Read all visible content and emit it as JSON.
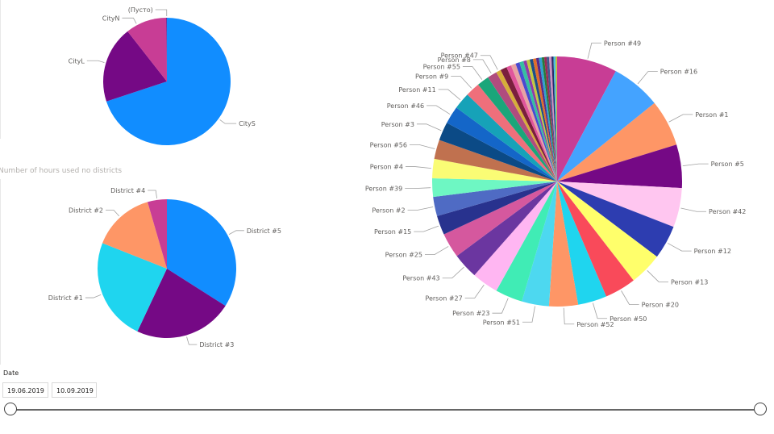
{
  "chart_data": [
    {
      "type": "pie",
      "title": "",
      "categories": [
        "CityS",
        "CityL",
        "CityN",
        "(Пусто)"
      ],
      "values": [
        70,
        19.5,
        10.5,
        0.1
      ],
      "colors": [
        "#118dff",
        "#750985",
        "#c83d95",
        "#12239e"
      ]
    },
    {
      "type": "pie",
      "title": "Number of hours used no districts",
      "categories": [
        "District #5",
        "District #3",
        "District #1",
        "District #2",
        "District #4"
      ],
      "values": [
        34,
        23,
        24,
        14.5,
        4.5
      ],
      "colors": [
        "#118dff",
        "#750985",
        "#1fd5ef",
        "#fe9666",
        "#c83d95"
      ]
    },
    {
      "type": "pie",
      "title": "",
      "categories": [
        "Person #49",
        "Person #16",
        "Person #1",
        "Person #5",
        "Person #42",
        "Person #12",
        "Person #13",
        "Person #20",
        "Person #50",
        "Person #52",
        "Person #51",
        "Person #23",
        "Person #27",
        "Person #43",
        "Person #25",
        "Person #15",
        "Person #2",
        "Person #39",
        "Person #4",
        "Person #56",
        "Person #3",
        "Person #46",
        "Person #11",
        "Person #9",
        "Person #55",
        "Person #8",
        "Person #47"
      ],
      "values": [
        7.5,
        6.2,
        5.8,
        5.4,
        4.9,
        4.2,
        4.1,
        3.9,
        3.6,
        3.6,
        3.4,
        3.4,
        3.3,
        3.2,
        3.1,
        2.4,
        2.4,
        2.3,
        2.4,
        2.4,
        2.3,
        2.2,
        2.1,
        1.8,
        1.5,
        1.2,
        0.6
      ],
      "other_slices": [
        0.8,
        0.6,
        0.6,
        0.5,
        0.5,
        0.4,
        0.4,
        0.4,
        0.4,
        0.35,
        0.35,
        0.3,
        0.3,
        0.3,
        0.3,
        0.25,
        0.25,
        0.2
      ],
      "colors": [
        "#c83d95",
        "#44a3ff",
        "#fe9666",
        "#750985",
        "#ffc6f0",
        "#2d3db0",
        "#ffff6b",
        "#f94a5a",
        "#1fd5ef",
        "#fe9666",
        "#4dd8f0",
        "#40ecb5",
        "#ffb6f2",
        "#6b36a0",
        "#d5589e",
        "#28328e",
        "#4f6bc4",
        "#6ef7c3",
        "#fafc75",
        "#c0714f",
        "#0b4a86",
        "#1466c8",
        "#16a2b8",
        "#ef6f7b",
        "#1aa67a",
        "#b04c7e",
        "#d6ad3a"
      ],
      "other_colors": [
        "#7a1f3d",
        "#e0559c",
        "#e8a3a3",
        "#4a4ad0",
        "#36bfa0",
        "#8f3ba8",
        "#c4c840",
        "#1d4e89",
        "#e06d2a",
        "#5b2a86",
        "#30a0d0",
        "#2a7a3a",
        "#9a2a56",
        "#405a8e",
        "#d090c0",
        "#2a2a6a",
        "#46c0e0",
        "#c0c040"
      ]
    }
  ],
  "filter": {
    "label": "Date",
    "start": "19.06.2019",
    "end": "10.09.2019"
  }
}
